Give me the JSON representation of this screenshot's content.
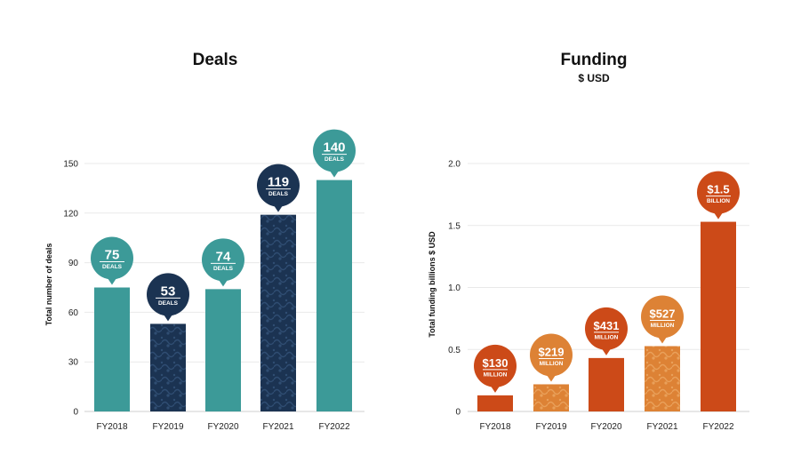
{
  "colors": {
    "teal": "#3c9a98",
    "navy": "#1b3352",
    "orange_dark": "#cc4a18",
    "orange_light": "#dd8235"
  },
  "chart_data": [
    {
      "type": "bar",
      "title": "Deals",
      "subtitle": "",
      "ylabel": "Total number of deals",
      "xlabel": "",
      "categories": [
        "FY2018",
        "FY2019",
        "FY2020",
        "FY2021",
        "FY2022"
      ],
      "values": [
        75,
        53,
        74,
        119,
        140
      ],
      "bar_colors": [
        "#3c9a98",
        "#1b3352",
        "#3c9a98",
        "#1b3352",
        "#3c9a98"
      ],
      "patterned": [
        false,
        true,
        false,
        true,
        false
      ],
      "ylim": [
        0,
        150
      ],
      "yticks": [
        0,
        30,
        60,
        90,
        120,
        150
      ],
      "ytick_labels": [
        "0",
        "30",
        "60",
        "90",
        "120",
        "150"
      ],
      "grid": true,
      "data_labels": [
        {
          "value": "75",
          "unit": "DEALS"
        },
        {
          "value": "53",
          "unit": "DEALS"
        },
        {
          "value": "74",
          "unit": "DEALS"
        },
        {
          "value": "119",
          "unit": "DEALS"
        },
        {
          "value": "140",
          "unit": "DEALS"
        }
      ]
    },
    {
      "type": "bar",
      "title": "Funding",
      "subtitle": "$ USD",
      "ylabel": "Total funding billions $ USD",
      "xlabel": "",
      "categories": [
        "FY2018",
        "FY2019",
        "FY2020",
        "FY2021",
        "FY2022"
      ],
      "values": [
        0.13,
        0.219,
        0.431,
        0.527,
        1.53
      ],
      "bar_colors": [
        "#cc4a18",
        "#dd8235",
        "#cc4a18",
        "#dd8235",
        "#cc4a18"
      ],
      "patterned": [
        false,
        true,
        false,
        true,
        false
      ],
      "ylim": [
        0,
        2.0
      ],
      "yticks": [
        0,
        0.5,
        1.0,
        1.5,
        2.0
      ],
      "ytick_labels": [
        "0",
        "0.5",
        "1.0",
        "1.5",
        "2.0"
      ],
      "grid": true,
      "data_labels": [
        {
          "value": "$130",
          "unit": "MILLION"
        },
        {
          "value": "$219",
          "unit": "MILLION"
        },
        {
          "value": "$431",
          "unit": "MILLION"
        },
        {
          "value": "$527",
          "unit": "MILLION"
        },
        {
          "value": "$1.5",
          "unit": "BILLION"
        }
      ]
    }
  ]
}
